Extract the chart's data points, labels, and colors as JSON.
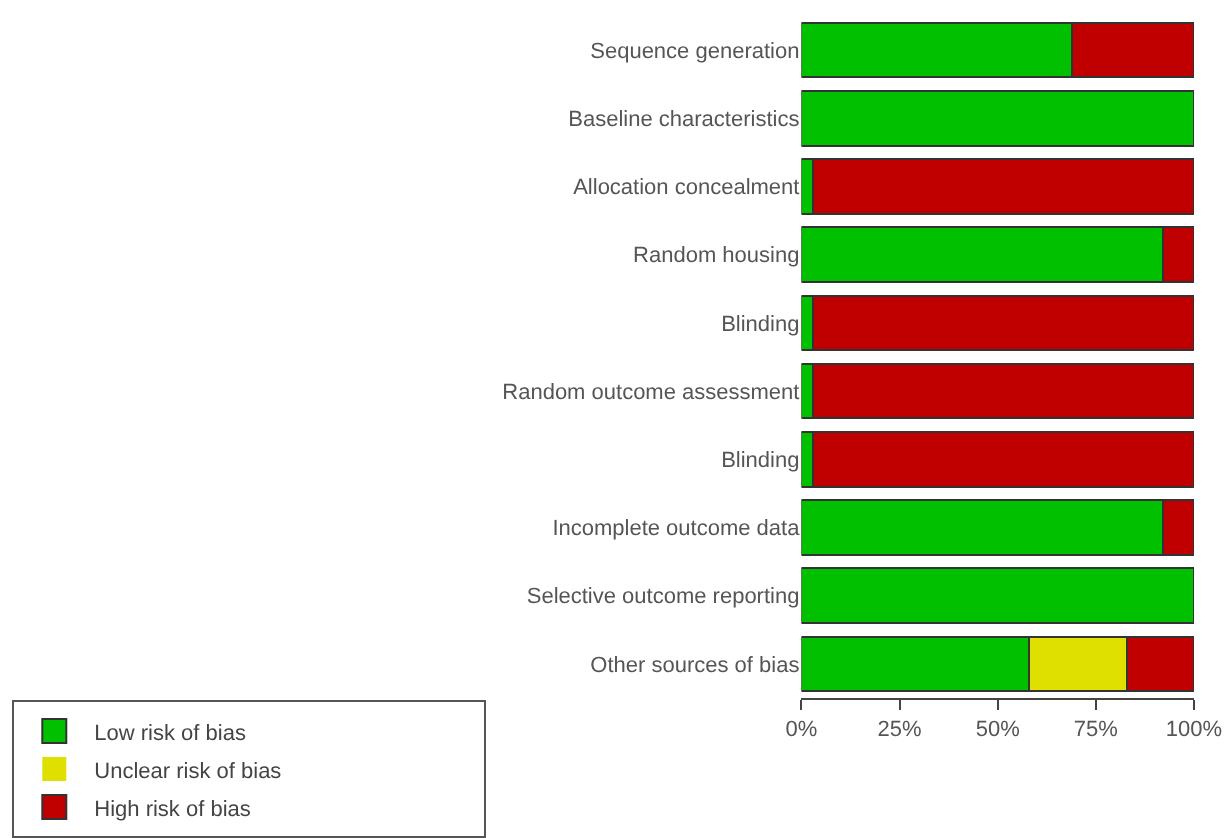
{
  "chart_data": {
    "type": "bar",
    "orientation": "horizontal",
    "stacked": true,
    "categories": [
      "Sequence generation",
      "Baseline characteristics",
      "Allocation concealment",
      "Random housing",
      "Blinding",
      "Random outcome assessment",
      "Blinding",
      "Incomplete outcome data",
      "Selective outcome reporting",
      "Other sources of bias"
    ],
    "series": [
      {
        "name": "Low risk of bias",
        "color": "#00c000",
        "values": [
          69,
          100,
          3,
          92,
          3,
          3,
          3,
          92,
          100,
          58
        ]
      },
      {
        "name": "Unclear risk of bias",
        "color": "#e0e000",
        "values": [
          0,
          0,
          0,
          0,
          0,
          0,
          0,
          0,
          0,
          25
        ]
      },
      {
        "name": "High risk of bias",
        "color": "#c00000",
        "values": [
          31,
          0,
          97,
          8,
          97,
          97,
          97,
          8,
          0,
          17
        ]
      }
    ],
    "xlim": [
      0,
      100
    ],
    "xticks": [
      {
        "value": 0,
        "label": "0%"
      },
      {
        "value": 25,
        "label": "25%"
      },
      {
        "value": 50,
        "label": "50%"
      },
      {
        "value": 75,
        "label": "75%"
      },
      {
        "value": 100,
        "label": "100%"
      }
    ],
    "grid": false,
    "legend": "bottom"
  }
}
